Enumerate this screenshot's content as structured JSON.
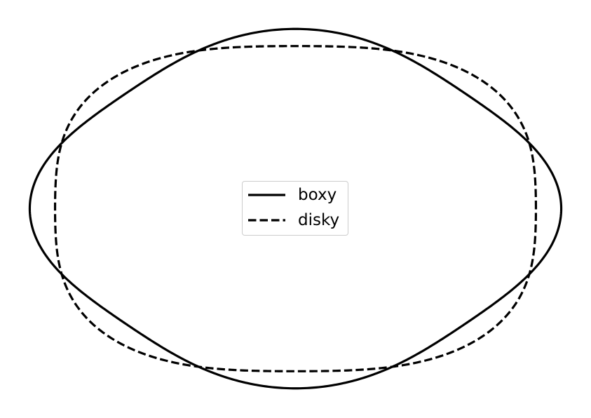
{
  "chart_data": {
    "type": "line",
    "title": "",
    "xlabel": "",
    "ylabel": "",
    "axes_visible": false,
    "grid": false,
    "legend_position": "center",
    "x_range": [
      -1.0,
      1.0
    ],
    "y_range": [
      -0.72,
      0.72
    ],
    "series": [
      {
        "name": "boxy",
        "style": "solid",
        "color": "#000000",
        "shape": {
          "semi_axis_x": 1.0,
          "semi_axis_y": 0.676,
          "harmonic_a4": 0.05
        }
      },
      {
        "name": "disky",
        "style": "dashed",
        "color": "#000000",
        "shape": {
          "semi_axis_x": 1.0,
          "semi_axis_y": 0.676,
          "harmonic_a4": -0.05
        }
      }
    ]
  }
}
